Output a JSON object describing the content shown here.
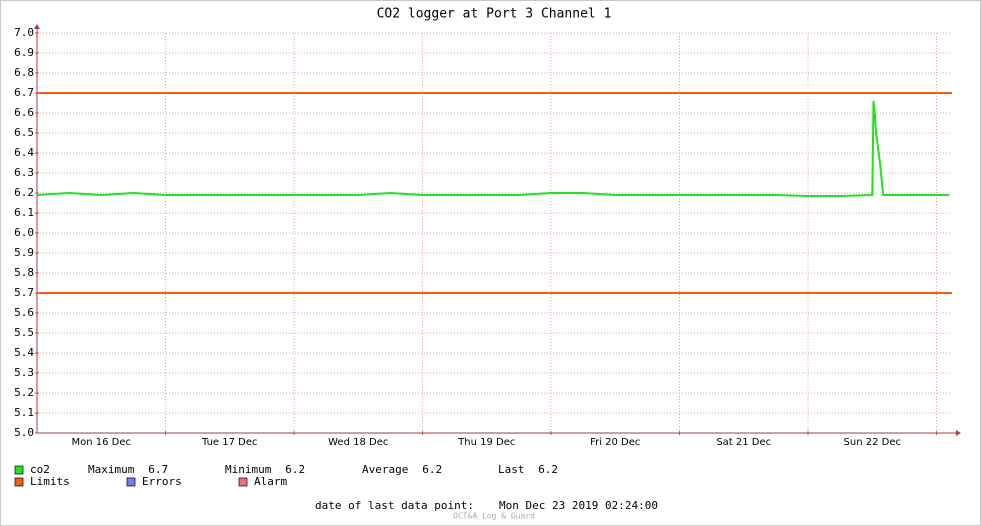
{
  "chart_data": {
    "type": "line",
    "title": "CO2 logger at Port 3 Channel 1",
    "xlim": [
      0,
      7.12
    ],
    "xticks": [
      {
        "value": 0.5,
        "label": "Mon 16 Dec"
      },
      {
        "value": 1.5,
        "label": "Tue 17 Dec"
      },
      {
        "value": 2.5,
        "label": "Wed 18 Dec"
      },
      {
        "value": 3.5,
        "label": "Thu 19 Dec"
      },
      {
        "value": 4.5,
        "label": "Fri 20 Dec"
      },
      {
        "value": 5.5,
        "label": "Sat 21 Dec"
      },
      {
        "value": 6.5,
        "label": "Sun 22 Dec"
      }
    ],
    "xgrid": [
      1,
      2,
      3,
      4,
      5,
      6,
      7
    ],
    "ylim": [
      5.0,
      7.0
    ],
    "yticks": [
      {
        "value": 5.0,
        "label": "5.0"
      },
      5.1,
      5.2,
      5.3,
      5.4,
      5.5,
      5.6,
      5.7,
      5.8,
      5.9,
      {
        "value": 6.0,
        "label": "6.0"
      },
      6.1,
      6.2,
      6.3,
      6.4,
      6.5,
      6.6,
      6.7,
      6.8,
      6.9,
      {
        "value": 7.0,
        "label": "7.0"
      }
    ],
    "grid": true,
    "series": [
      {
        "name": "co2",
        "color": "#22e022",
        "x": [
          0,
          0.25,
          0.5,
          0.75,
          1,
          1.25,
          1.5,
          1.75,
          2,
          2.25,
          2.5,
          2.75,
          3,
          3.25,
          3.5,
          3.75,
          4,
          4.25,
          4.5,
          4.75,
          5,
          5.25,
          5.5,
          5.75,
          6,
          6.25,
          6.5,
          6.51,
          6.52,
          6.53,
          6.56,
          6.585,
          6.75,
          7.0,
          7.1
        ],
        "values": [
          6.19,
          6.2,
          6.19,
          6.2,
          6.19,
          6.19,
          6.19,
          6.19,
          6.19,
          6.19,
          6.19,
          6.2,
          6.19,
          6.19,
          6.19,
          6.19,
          6.2,
          6.2,
          6.19,
          6.19,
          6.19,
          6.19,
          6.19,
          6.19,
          6.185,
          6.185,
          6.19,
          6.66,
          6.6,
          6.5,
          6.35,
          6.19,
          6.19,
          6.19,
          6.19
        ]
      },
      {
        "name": "Limits",
        "color": "#f06010",
        "hlines": [
          6.7,
          5.7
        ]
      },
      {
        "name": "Errors",
        "color": "#7080f0"
      },
      {
        "name": "Alarm",
        "color": "#f07070"
      }
    ],
    "stats": [
      {
        "label": "Maximum",
        "value": 6.7
      },
      {
        "label": "Minimum",
        "value": 6.2
      },
      {
        "label": "Average",
        "value": 6.2
      },
      {
        "label": "Last",
        "value": 6.2
      }
    ],
    "footer": {
      "label": "date of last data point:",
      "date": "Mon Dec 23 2019 02:24:00",
      "credit": "OCT&A Log & Guard"
    }
  }
}
